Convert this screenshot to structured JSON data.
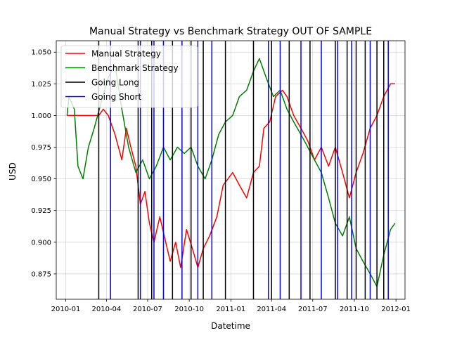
{
  "chart_data": {
    "type": "line",
    "title": "Manual Strategy vs Benchmark Strategy OUT OF SAMPLE",
    "xlabel": "Datetime",
    "ylabel": "USD",
    "xlim": [
      "2009-12-11",
      "2012-01-21"
    ],
    "ylim": [
      0.855,
      1.059
    ],
    "grid": true,
    "legend_position": "top-left",
    "x_ticks": [
      "2010-01",
      "2010-04",
      "2010-07",
      "2010-10",
      "2011-01",
      "2011-04",
      "2011-07",
      "2011-10",
      "2012-01"
    ],
    "x_tick_dates": [
      "2010-01-01",
      "2010-04-01",
      "2010-07-01",
      "2010-10-01",
      "2011-01-01",
      "2011-04-01",
      "2011-07-01",
      "2011-10-01",
      "2012-01-01"
    ],
    "y_ticks": [
      0.875,
      0.9,
      0.925,
      0.95,
      0.975,
      1.0,
      1.025,
      1.05
    ],
    "y_tick_labels": [
      "0.875",
      "0.900",
      "0.925",
      "0.950",
      "0.975",
      "1.000",
      "1.025",
      "1.050"
    ],
    "series": [
      {
        "name": "Manual Strategy",
        "color": "#ff0000",
        "points": [
          [
            "2010-01-04",
            1.0
          ],
          [
            "2010-02-15",
            1.0
          ],
          [
            "2010-03-15",
            1.0
          ],
          [
            "2010-03-25",
            1.005
          ],
          [
            "2010-04-05",
            1.0
          ],
          [
            "2010-04-20",
            0.985
          ],
          [
            "2010-05-05",
            0.965
          ],
          [
            "2010-05-15",
            0.99
          ],
          [
            "2010-05-25",
            0.975
          ],
          [
            "2010-06-05",
            0.96
          ],
          [
            "2010-06-15",
            0.93
          ],
          [
            "2010-06-25",
            0.94
          ],
          [
            "2010-07-05",
            0.915
          ],
          [
            "2010-07-15",
            0.9
          ],
          [
            "2010-07-28",
            0.92
          ],
          [
            "2010-08-10",
            0.9
          ],
          [
            "2010-08-20",
            0.885
          ],
          [
            "2010-09-01",
            0.9
          ],
          [
            "2010-09-12",
            0.88
          ],
          [
            "2010-09-25",
            0.91
          ],
          [
            "2010-10-08",
            0.895
          ],
          [
            "2010-10-20",
            0.88
          ],
          [
            "2010-11-01",
            0.895
          ],
          [
            "2010-11-15",
            0.905
          ],
          [
            "2010-12-01",
            0.92
          ],
          [
            "2010-12-15",
            0.945
          ],
          [
            "2011-01-05",
            0.955
          ],
          [
            "2011-01-20",
            0.945
          ],
          [
            "2011-02-05",
            0.935
          ],
          [
            "2011-02-20",
            0.955
          ],
          [
            "2011-03-05",
            0.96
          ],
          [
            "2011-03-15",
            0.99
          ],
          [
            "2011-03-28",
            0.995
          ],
          [
            "2011-04-10",
            1.015
          ],
          [
            "2011-04-25",
            1.02
          ],
          [
            "2011-05-05",
            1.015
          ],
          [
            "2011-05-20",
            1.0
          ],
          [
            "2011-06-05",
            0.99
          ],
          [
            "2011-06-20",
            0.98
          ],
          [
            "2011-07-05",
            0.965
          ],
          [
            "2011-07-20",
            0.975
          ],
          [
            "2011-08-05",
            0.96
          ],
          [
            "2011-08-20",
            0.975
          ],
          [
            "2011-09-05",
            0.955
          ],
          [
            "2011-09-20",
            0.935
          ],
          [
            "2011-10-05",
            0.955
          ],
          [
            "2011-10-20",
            0.97
          ],
          [
            "2011-11-05",
            0.99
          ],
          [
            "2011-11-20",
            1.0
          ],
          [
            "2011-12-05",
            1.015
          ],
          [
            "2011-12-20",
            1.025
          ],
          [
            "2011-12-30",
            1.025
          ]
        ]
      },
      {
        "name": "Benchmark Strategy",
        "color": "#008000",
        "points": [
          [
            "2010-01-04",
            1.0
          ],
          [
            "2010-01-08",
            1.015
          ],
          [
            "2010-01-20",
            1.005
          ],
          [
            "2010-01-28",
            0.96
          ],
          [
            "2010-02-08",
            0.95
          ],
          [
            "2010-02-20",
            0.975
          ],
          [
            "2010-03-05",
            0.99
          ],
          [
            "2010-03-20",
            1.01
          ],
          [
            "2010-04-05",
            1.03
          ],
          [
            "2010-04-20",
            1.04
          ],
          [
            "2010-05-05",
            1.005
          ],
          [
            "2010-05-20",
            0.975
          ],
          [
            "2010-06-05",
            0.955
          ],
          [
            "2010-06-20",
            0.965
          ],
          [
            "2010-07-05",
            0.95
          ],
          [
            "2010-07-20",
            0.96
          ],
          [
            "2010-08-05",
            0.975
          ],
          [
            "2010-08-20",
            0.965
          ],
          [
            "2010-09-05",
            0.975
          ],
          [
            "2010-09-20",
            0.97
          ],
          [
            "2010-10-05",
            0.975
          ],
          [
            "2010-10-20",
            0.96
          ],
          [
            "2010-11-05",
            0.95
          ],
          [
            "2010-11-20",
            0.965
          ],
          [
            "2010-12-05",
            0.985
          ],
          [
            "2010-12-20",
            0.995
          ],
          [
            "2011-01-05",
            1.0
          ],
          [
            "2011-01-20",
            1.015
          ],
          [
            "2011-02-05",
            1.02
          ],
          [
            "2011-02-20",
            1.035
          ],
          [
            "2011-03-05",
            1.045
          ],
          [
            "2011-03-20",
            1.03
          ],
          [
            "2011-04-05",
            1.015
          ],
          [
            "2011-04-20",
            1.02
          ],
          [
            "2011-05-05",
            1.005
          ],
          [
            "2011-05-20",
            0.995
          ],
          [
            "2011-06-05",
            0.985
          ],
          [
            "2011-06-20",
            0.975
          ],
          [
            "2011-07-05",
            0.965
          ],
          [
            "2011-07-20",
            0.955
          ],
          [
            "2011-08-05",
            0.935
          ],
          [
            "2011-08-20",
            0.915
          ],
          [
            "2011-09-05",
            0.905
          ],
          [
            "2011-09-20",
            0.92
          ],
          [
            "2011-10-05",
            0.895
          ],
          [
            "2011-10-20",
            0.885
          ],
          [
            "2011-11-05",
            0.875
          ],
          [
            "2011-11-20",
            0.865
          ],
          [
            "2011-12-05",
            0.89
          ],
          [
            "2011-12-20",
            0.91
          ],
          [
            "2011-12-30",
            0.915
          ]
        ]
      }
    ],
    "signal_lines": [
      {
        "name": "Going Long",
        "color": "#000000",
        "dates": [
          "2010-03-15",
          "2010-06-10",
          "2010-07-10",
          "2010-08-25",
          "2010-10-05",
          "2010-11-01",
          "2010-12-20",
          "2011-02-20",
          "2011-04-01",
          "2011-05-10",
          "2011-06-25",
          "2011-08-20",
          "2011-09-15",
          "2011-10-05",
          "2011-10-25",
          "2011-11-20",
          "2011-12-05"
        ]
      },
      {
        "name": "Going Short",
        "color": "#0000ff",
        "dates": [
          "2010-04-10",
          "2010-06-15",
          "2010-07-15",
          "2010-08-05",
          "2010-09-15",
          "2010-10-20",
          "2010-11-20",
          "2011-03-25",
          "2011-04-20",
          "2011-06-05",
          "2011-07-20",
          "2011-08-25",
          "2011-09-25",
          "2011-11-05",
          "2011-12-15"
        ]
      }
    ]
  }
}
